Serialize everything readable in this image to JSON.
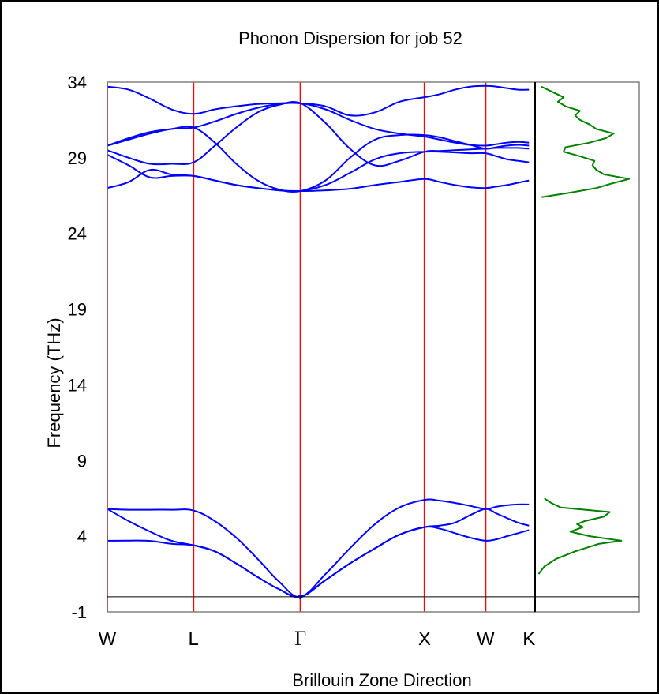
{
  "chart_data": [
    {
      "type": "line",
      "title": "Phonon Dispersion for job 52",
      "xlabel": "Brillouin Zone Direction",
      "ylabel": "Frequency (THz)",
      "ylim": [
        -1,
        34
      ],
      "yticks": [
        -1,
        4,
        9,
        14,
        19,
        24,
        29,
        34
      ],
      "xlim": [
        0,
        7
      ],
      "kpoints": [
        {
          "label": "W",
          "x": 0
        },
        {
          "label": "L",
          "x": 1.41
        },
        {
          "label": "Γ",
          "x": 3.16
        },
        {
          "label": "X",
          "x": 5.19
        },
        {
          "label": "W",
          "x": 6.19
        },
        {
          "label": "K",
          "x": 6.9
        }
      ],
      "grid": false,
      "zero_line": 0,
      "colors": {
        "bands": "#0000ff",
        "kpoint_lines": "#ff0000",
        "dos": "#008000",
        "frame": "#808080"
      },
      "series": [
        {
          "x": [
            0,
            0.35,
            0.7,
            1.05,
            1.41,
            1.76,
            2.11,
            2.46,
            2.81,
            3.16,
            3.57,
            3.97,
            4.38,
            4.78,
            5.19,
            5.44,
            5.69,
            5.94,
            6.19,
            6.37,
            6.54,
            6.72,
            6.9
          ],
          "y": [
            3.7,
            3.71,
            3.69,
            3.5,
            3.4,
            3.0,
            2.2,
            1.3,
            0.5,
            0,
            1.1,
            2.2,
            3.2,
            4.1,
            4.6,
            4.7,
            4.9,
            5.4,
            5.8,
            5.5,
            5.2,
            4.9,
            4.7
          ]
        },
        {
          "x": [
            0,
            0.35,
            0.7,
            1.05,
            1.41,
            1.76,
            2.11,
            2.46,
            2.81,
            3.16,
            3.57,
            3.97,
            4.38,
            4.78,
            5.19,
            5.44,
            5.69,
            5.94,
            6.19,
            6.37,
            6.54,
            6.72,
            6.9
          ],
          "y": [
            5.8,
            5.0,
            4.3,
            3.7,
            3.4,
            3.0,
            2.2,
            1.3,
            0.5,
            0,
            1.1,
            2.2,
            3.2,
            4.1,
            4.6,
            4.5,
            4.2,
            3.9,
            3.7,
            3.8,
            4.0,
            4.2,
            4.4
          ]
        },
        {
          "x": [
            0,
            0.35,
            0.7,
            1.05,
            1.41,
            1.76,
            2.11,
            2.46,
            2.81,
            3.16,
            3.57,
            3.97,
            4.38,
            4.78,
            5.19,
            5.44,
            5.69,
            5.94,
            6.19,
            6.37,
            6.54,
            6.72,
            6.9
          ],
          "y": [
            5.8,
            5.75,
            5.75,
            5.75,
            5.7,
            5.0,
            3.9,
            2.5,
            1.0,
            0,
            1.5,
            3.2,
            4.8,
            5.9,
            6.4,
            6.35,
            6.2,
            6.0,
            5.8,
            5.95,
            6.05,
            6.1,
            6.1
          ]
        },
        {
          "x": [
            0,
            0.35,
            0.7,
            1.05,
            1.41,
            1.76,
            2.11,
            2.46,
            2.81,
            3.16,
            3.57,
            3.97,
            4.38,
            4.78,
            5.19,
            5.44,
            5.69,
            5.94,
            6.19,
            6.37,
            6.54,
            6.72,
            6.9
          ],
          "y": [
            27.0,
            27.4,
            28.2,
            27.9,
            27.8,
            27.5,
            27.2,
            27.0,
            26.85,
            26.8,
            26.85,
            26.95,
            27.2,
            27.4,
            27.6,
            27.4,
            27.2,
            27.05,
            27.0,
            27.1,
            27.2,
            27.35,
            27.5
          ]
        },
        {
          "x": [
            0,
            0.35,
            0.7,
            1.05,
            1.41,
            1.76,
            2.11,
            2.46,
            2.81,
            3.16,
            3.57,
            3.97,
            4.38,
            4.78,
            5.19,
            5.44,
            5.69,
            5.94,
            6.19,
            6.37,
            6.54,
            6.72,
            6.9
          ],
          "y": [
            29.2,
            28.5,
            27.7,
            27.8,
            27.8,
            27.5,
            27.2,
            27.0,
            26.85,
            26.8,
            27.2,
            28.0,
            28.9,
            29.3,
            29.4,
            29.4,
            29.35,
            29.3,
            29.3,
            29.1,
            28.9,
            28.8,
            28.7
          ]
        },
        {
          "x": [
            0,
            0.35,
            0.7,
            1.05,
            1.41,
            1.76,
            2.11,
            2.46,
            2.81,
            3.16,
            3.57,
            3.97,
            4.38,
            4.78,
            5.19,
            5.44,
            5.69,
            5.94,
            6.19,
            6.37,
            6.54,
            6.72,
            6.9
          ],
          "y": [
            29.5,
            29.0,
            28.6,
            28.6,
            28.7,
            29.8,
            31.0,
            32.0,
            32.5,
            32.6,
            31.3,
            29.6,
            28.5,
            28.8,
            29.4,
            29.45,
            29.5,
            29.55,
            29.6,
            29.65,
            29.65,
            29.65,
            29.6
          ]
        },
        {
          "x": [
            0,
            0.35,
            0.7,
            1.05,
            1.41,
            1.76,
            2.11,
            2.46,
            2.81,
            3.16,
            3.57,
            3.97,
            4.38,
            4.78,
            5.19,
            5.44,
            5.69,
            5.94,
            6.19,
            6.37,
            6.54,
            6.72,
            6.9
          ],
          "y": [
            29.8,
            30.2,
            30.6,
            30.9,
            31.0,
            30.0,
            28.6,
            27.5,
            26.9,
            26.8,
            27.5,
            29.0,
            30.2,
            30.5,
            30.5,
            30.35,
            30.1,
            29.85,
            29.6,
            29.7,
            29.8,
            29.85,
            29.8
          ]
        },
        {
          "x": [
            0,
            0.35,
            0.7,
            1.05,
            1.41,
            1.76,
            2.11,
            2.46,
            2.81,
            3.16,
            3.57,
            3.97,
            4.38,
            4.78,
            5.19,
            5.44,
            5.69,
            5.94,
            6.19,
            6.37,
            6.54,
            6.72,
            6.9
          ],
          "y": [
            29.8,
            30.3,
            30.7,
            30.9,
            31.0,
            31.4,
            31.9,
            32.3,
            32.55,
            32.6,
            32.2,
            31.5,
            30.9,
            30.6,
            30.4,
            30.2,
            30.0,
            29.85,
            29.8,
            29.9,
            30.0,
            30.05,
            30.0
          ]
        },
        {
          "x": [
            0,
            0.35,
            0.7,
            1.05,
            1.41,
            1.76,
            2.11,
            2.46,
            2.81,
            3.16,
            3.57,
            3.97,
            4.38,
            4.78,
            5.19,
            5.44,
            5.69,
            5.94,
            6.19,
            6.37,
            6.54,
            6.72,
            6.9
          ],
          "y": [
            33.7,
            33.5,
            32.9,
            32.2,
            31.9,
            32.2,
            32.4,
            32.55,
            32.6,
            32.6,
            32.4,
            31.8,
            32.0,
            32.7,
            33.0,
            33.2,
            33.5,
            33.7,
            33.75,
            33.7,
            33.6,
            33.5,
            33.5
          ]
        }
      ]
    },
    {
      "type": "line",
      "title": "",
      "xlabel": "",
      "ylabel": "",
      "orientation": "vertical",
      "ylim": [
        -1,
        34
      ],
      "xlim": [
        0,
        1
      ],
      "grid": false,
      "series": [
        {
          "y": [
            1.5,
            2,
            2.5,
            3,
            3.5,
            3.7,
            4,
            4.3,
            4.6,
            4.8,
            5.0,
            5.3,
            5.6,
            5.9,
            6.2,
            6.5,
            26.4,
            26.7,
            27.0,
            27.3,
            27.6,
            27.9,
            28.2,
            28.5,
            28.8,
            29.1,
            29.4,
            29.7,
            30.0,
            30.3,
            30.6,
            30.9,
            31.2,
            31.5,
            31.8,
            32.1,
            32.4,
            32.7,
            33.0,
            33.3,
            33.7
          ],
          "x": [
            0.02,
            0.08,
            0.2,
            0.4,
            0.65,
            0.88,
            0.55,
            0.35,
            0.48,
            0.42,
            0.5,
            0.7,
            0.76,
            0.25,
            0.15,
            0.08,
            0.05,
            0.35,
            0.62,
            0.78,
            0.96,
            0.7,
            0.62,
            0.58,
            0.6,
            0.45,
            0.28,
            0.3,
            0.55,
            0.72,
            0.8,
            0.62,
            0.55,
            0.45,
            0.4,
            0.45,
            0.3,
            0.22,
            0.28,
            0.18,
            0.05
          ]
        }
      ]
    }
  ]
}
